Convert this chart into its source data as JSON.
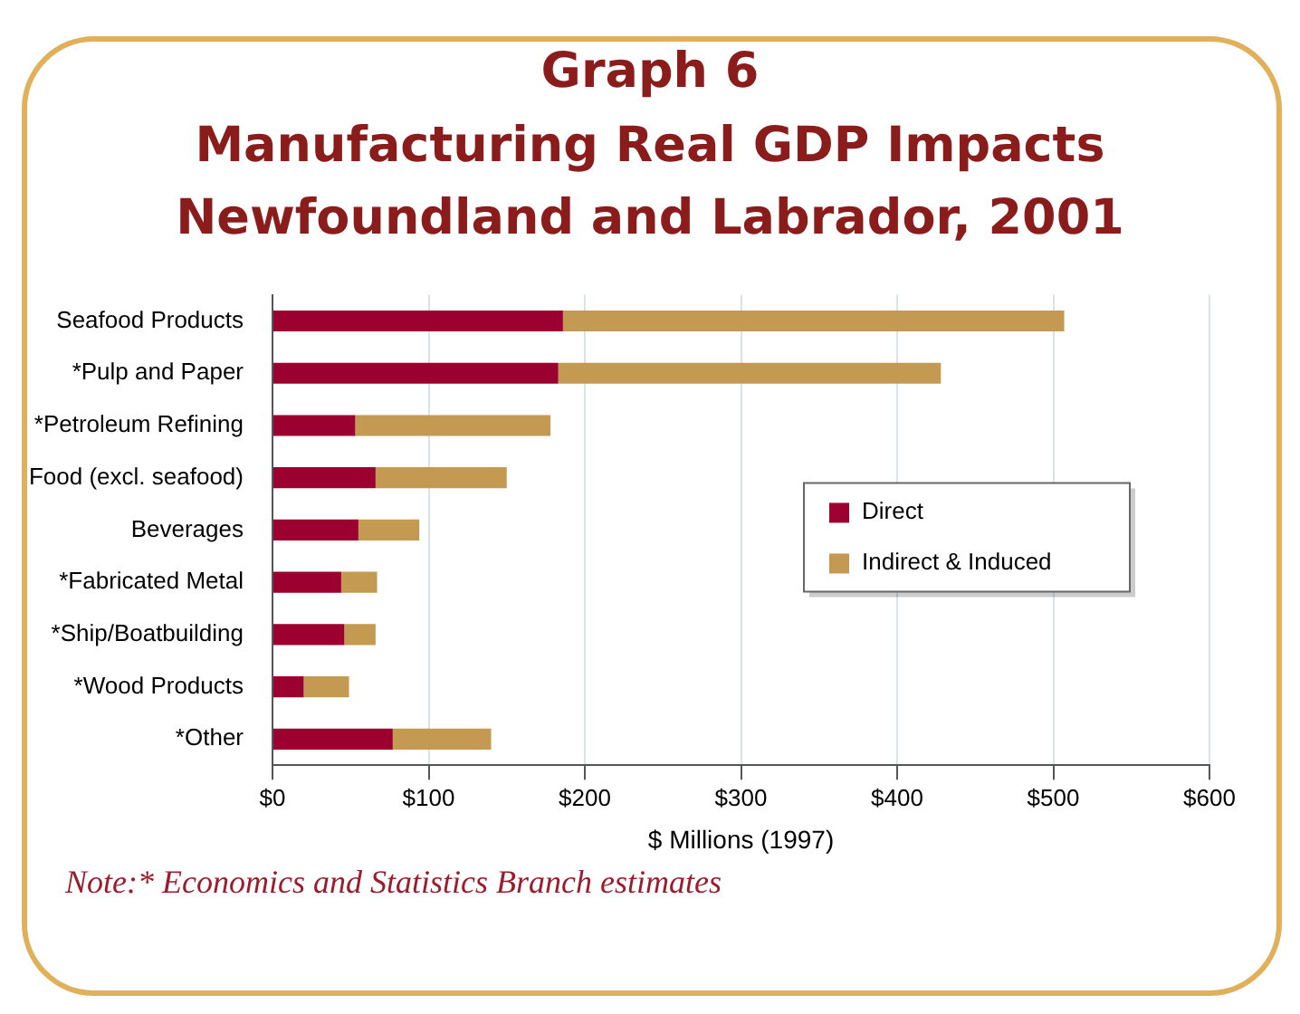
{
  "chart_data": {
    "type": "bar",
    "orientation": "horizontal",
    "stacked": true,
    "title": "Graph 6",
    "subtitle": "Manufacturing Real GDP Impacts Newfoundland and Labrador, 2001",
    "xlabel": "$ Millions (1997)",
    "categories": [
      "Seafood Products",
      "*Pulp and Paper",
      "*Petroleum Refining",
      "Food (excl. seafood)",
      "Beverages",
      "*Fabricated Metal",
      "*Ship/Boatbuilding",
      "*Wood Products",
      "*Other"
    ],
    "series": [
      {
        "name": "Direct",
        "color": "#9b0030",
        "values": [
          186,
          183,
          53,
          66,
          55,
          44,
          46,
          20,
          77
        ]
      },
      {
        "name": "Indirect & Induced",
        "color": "#c49a52",
        "values": [
          321,
          245,
          125,
          84,
          39,
          23,
          20,
          29,
          63
        ]
      }
    ],
    "xlim": [
      0,
      600
    ],
    "xticks": [
      {
        "value": 0,
        "label": "$0"
      },
      {
        "value": 100,
        "label": "$100"
      },
      {
        "value": 200,
        "label": "$200"
      },
      {
        "value": 300,
        "label": "$300"
      },
      {
        "value": 400,
        "label": "$400"
      },
      {
        "value": 500,
        "label": "$500"
      },
      {
        "value": 600,
        "label": "$600"
      }
    ],
    "grid": "x",
    "legend": "right",
    "annotations": [
      "Note:* Economics and Statistics Branch estimates"
    ]
  }
}
